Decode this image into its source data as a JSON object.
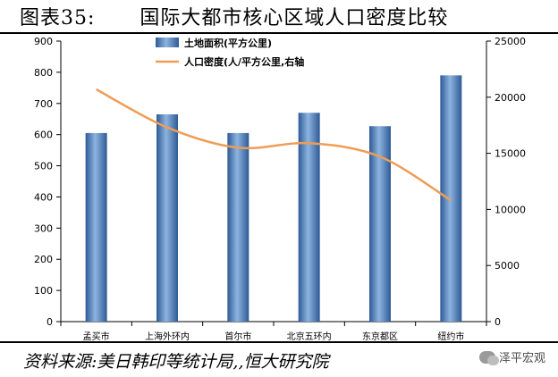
{
  "header": {
    "figure_label": "图表35:",
    "title": "国际大都市核心区域人口密度比较"
  },
  "source": {
    "text": "资料来源:美日韩印等统计局,,恒大研究院",
    "watermark": "泽平宏观"
  },
  "colors": {
    "bar": "#4a7ab8",
    "bar_dark": "#2f5a95",
    "bar_light": "#8db4e0",
    "line": "#ef9d55",
    "grid": "#000000"
  },
  "chart_data": {
    "type": "bar",
    "categories": [
      "孟买市",
      "上海外环内",
      "首尔市",
      "北京五环内",
      "东京都区",
      "纽约市"
    ],
    "series": [
      {
        "name": "土地面积(平方公里)",
        "type": "bar",
        "axis": "left",
        "values": [
          605,
          665,
          605,
          670,
          627,
          790
        ]
      },
      {
        "name": "人口密度(人/平方公里,右轴",
        "type": "line",
        "axis": "right",
        "values": [
          20700,
          17300,
          15500,
          15900,
          14700,
          10800
        ]
      }
    ],
    "y_left": {
      "min": 0,
      "max": 900,
      "ticks": [
        0,
        100,
        200,
        300,
        400,
        500,
        600,
        700,
        800,
        900
      ]
    },
    "y_right": {
      "min": 0,
      "max": 25000,
      "ticks": [
        0,
        5000,
        10000,
        15000,
        20000,
        25000
      ]
    },
    "legend": "top-center",
    "grid": false
  }
}
